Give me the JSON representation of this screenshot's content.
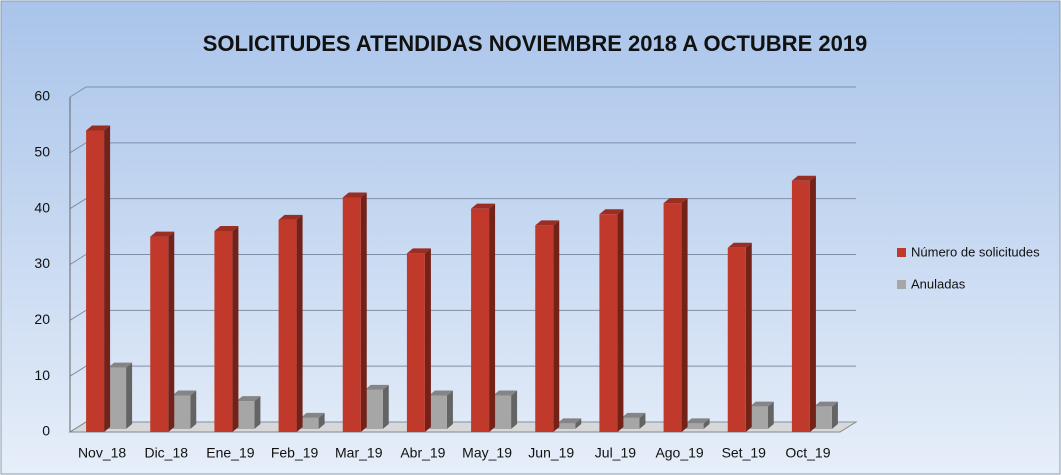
{
  "chart_data": {
    "type": "bar",
    "title": "SOLICITUDES ATENDIDAS NOVIEMBRE 2018 A OCTUBRE 2019",
    "categories": [
      "Nov_18",
      "Dic_18",
      "Ene_19",
      "Feb_19",
      "Mar_19",
      "Abr_19",
      "May_19",
      "Jun_19",
      "Jul_19",
      "Ago_19",
      "Set_19",
      "Oct_19"
    ],
    "series": [
      {
        "name": "Número de solicitudes",
        "color": "#c0392b",
        "values": [
          54,
          35,
          36,
          38,
          42,
          32,
          40,
          37,
          39,
          41,
          33,
          45
        ]
      },
      {
        "name": "Anuladas",
        "color": "#a6a6a6",
        "values": [
          11,
          6,
          5,
          2,
          7,
          6,
          6,
          1,
          2,
          1,
          4,
          4
        ]
      }
    ],
    "ylim": [
      0,
      60
    ],
    "yticks": [
      0,
      10,
      20,
      30,
      40,
      50,
      60
    ],
    "grid": true,
    "legend": "right"
  }
}
